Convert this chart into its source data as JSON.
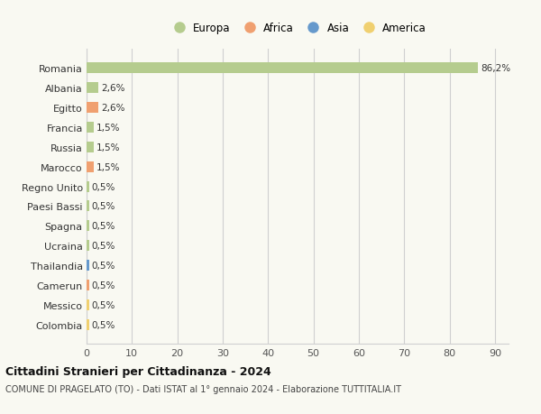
{
  "countries": [
    "Romania",
    "Albania",
    "Egitto",
    "Francia",
    "Russia",
    "Marocco",
    "Regno Unito",
    "Paesi Bassi",
    "Spagna",
    "Ucraina",
    "Thailandia",
    "Camerun",
    "Messico",
    "Colombia"
  ],
  "values": [
    86.2,
    2.6,
    2.6,
    1.5,
    1.5,
    1.5,
    0.5,
    0.5,
    0.5,
    0.5,
    0.5,
    0.5,
    0.5,
    0.5
  ],
  "labels": [
    "86,2%",
    "2,6%",
    "2,6%",
    "1,5%",
    "1,5%",
    "1,5%",
    "0,5%",
    "0,5%",
    "0,5%",
    "0,5%",
    "0,5%",
    "0,5%",
    "0,5%",
    "0,5%"
  ],
  "continents": [
    "Europa",
    "Europa",
    "Africa",
    "Europa",
    "Europa",
    "Africa",
    "Europa",
    "Europa",
    "Europa",
    "Europa",
    "Asia",
    "Africa",
    "America",
    "America"
  ],
  "continent_colors": {
    "Europa": "#b5cc8e",
    "Africa": "#f0a070",
    "Asia": "#6699cc",
    "America": "#f0d070"
  },
  "legend_order": [
    "Europa",
    "Africa",
    "Asia",
    "America"
  ],
  "xlim": [
    0,
    93
  ],
  "xticks": [
    0,
    10,
    20,
    30,
    40,
    50,
    60,
    70,
    80,
    90
  ],
  "title": "Cittadini Stranieri per Cittadinanza - 2024",
  "subtitle": "COMUNE DI PRAGELATO (TO) - Dati ISTAT al 1° gennaio 2024 - Elaborazione TUTTITALIA.IT",
  "background_color": "#f9f9f2",
  "bar_height": 0.55,
  "grid_color": "#d0d0d0"
}
